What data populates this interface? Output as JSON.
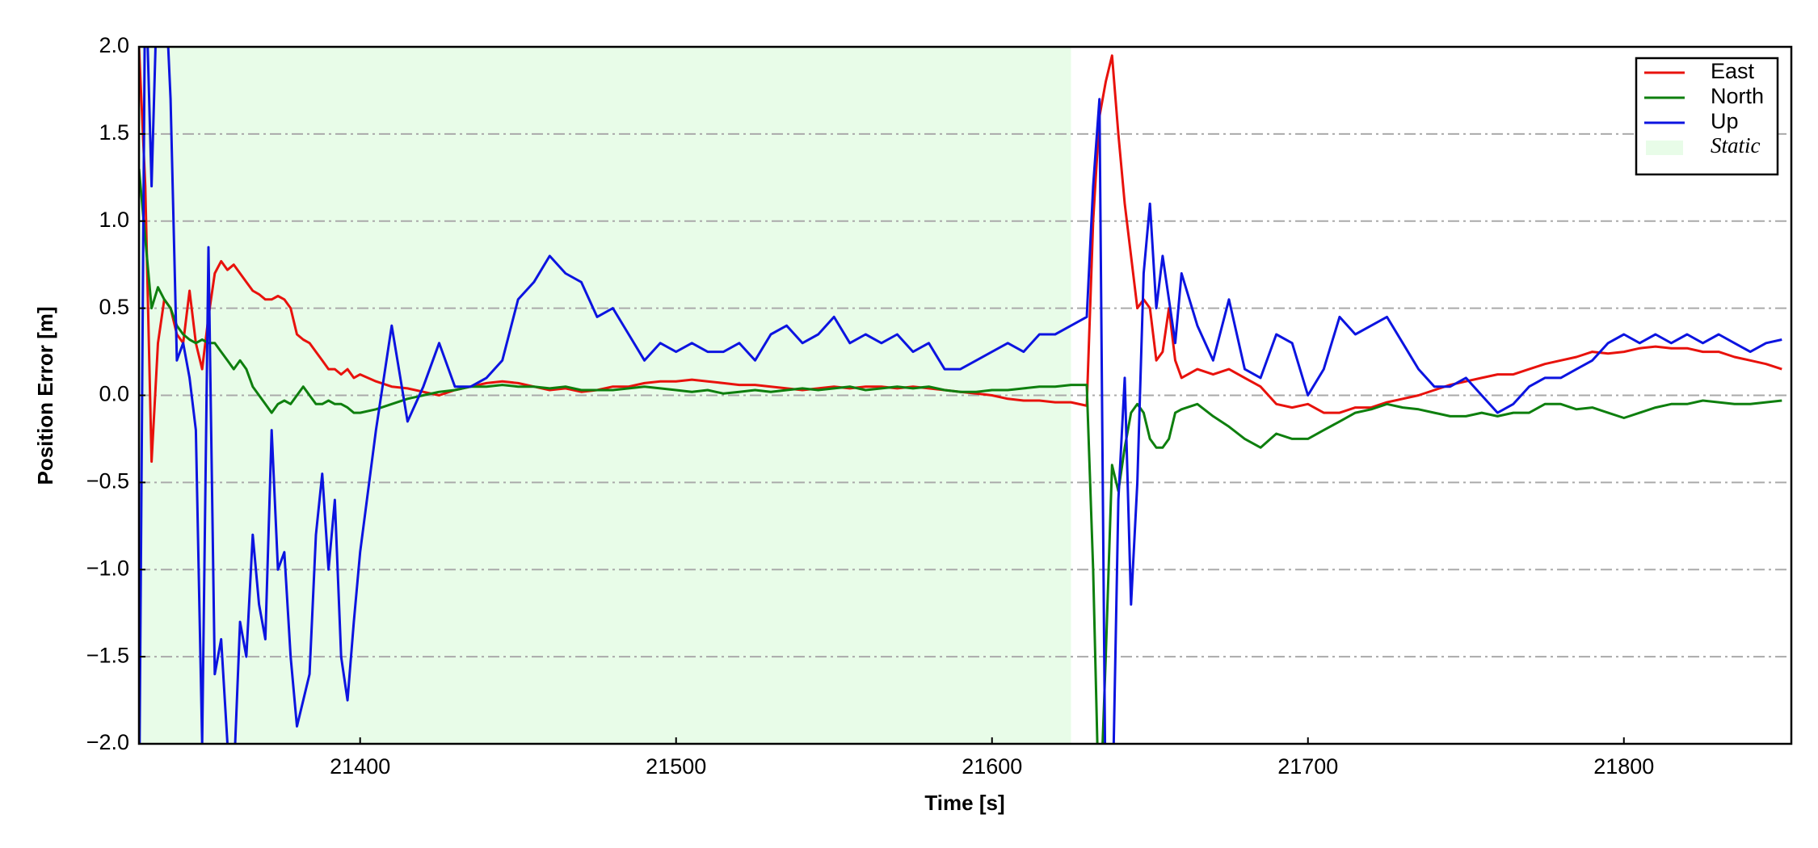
{
  "chart_data": {
    "type": "line",
    "xlabel": "Time [s]",
    "ylabel": "Position Error [m]",
    "xlim": [
      21330,
      21853
    ],
    "ylim": [
      -2.0,
      2.0
    ],
    "xticks": [
      21400,
      21500,
      21600,
      21700,
      21800
    ],
    "yticks": [
      {
        "value": -2.0,
        "label": "−2.0"
      },
      {
        "value": -1.5,
        "label": "−1.5"
      },
      {
        "value": -1.0,
        "label": "−1.0"
      },
      {
        "value": -0.5,
        "label": "−0.5"
      },
      {
        "value": 0.0,
        "label": "0.0"
      },
      {
        "value": 0.5,
        "label": "0.5"
      },
      {
        "value": 1.0,
        "label": "1.0"
      },
      {
        "value": 1.5,
        "label": "1.5"
      },
      {
        "value": 2.0,
        "label": "2.0"
      }
    ],
    "grid": true,
    "legend": "upper right",
    "shaded_region": {
      "name": "Static",
      "color": "#e8fce8",
      "x": [
        21330,
        21625
      ]
    },
    "x": [
      21330,
      21332,
      21334,
      21336,
      21338,
      21340,
      21342,
      21344,
      21346,
      21348,
      21350,
      21352,
      21354,
      21356,
      21358,
      21360,
      21362,
      21364,
      21366,
      21368,
      21370,
      21372,
      21374,
      21376,
      21378,
      21380,
      21382,
      21384,
      21386,
      21388,
      21390,
      21392,
      21394,
      21396,
      21398,
      21400,
      21405,
      21410,
      21415,
      21420,
      21425,
      21430,
      21435,
      21440,
      21445,
      21450,
      21455,
      21460,
      21465,
      21470,
      21475,
      21480,
      21485,
      21490,
      21495,
      21500,
      21505,
      21510,
      21515,
      21520,
      21525,
      21530,
      21535,
      21540,
      21545,
      21550,
      21555,
      21560,
      21565,
      21570,
      21575,
      21580,
      21585,
      21590,
      21595,
      21600,
      21605,
      21610,
      21615,
      21620,
      21625,
      21630,
      21632,
      21634,
      21636,
      21638,
      21640,
      21642,
      21644,
      21646,
      21648,
      21650,
      21652,
      21654,
      21656,
      21658,
      21660,
      21665,
      21670,
      21675,
      21680,
      21685,
      21690,
      21695,
      21700,
      21705,
      21710,
      21715,
      21720,
      21725,
      21730,
      21735,
      21740,
      21745,
      21750,
      21755,
      21760,
      21765,
      21770,
      21775,
      21780,
      21785,
      21790,
      21795,
      21800,
      21805,
      21810,
      21815,
      21820,
      21825,
      21830,
      21835,
      21840,
      21845,
      21850
    ],
    "series": [
      {
        "name": "East",
        "color": "#e8120c",
        "values": [
          2.0,
          1.2,
          -0.38,
          0.3,
          0.55,
          0.5,
          0.35,
          0.3,
          0.6,
          0.3,
          0.15,
          0.45,
          0.7,
          0.77,
          0.72,
          0.75,
          0.7,
          0.65,
          0.6,
          0.58,
          0.55,
          0.55,
          0.57,
          0.55,
          0.5,
          0.35,
          0.32,
          0.3,
          0.25,
          0.2,
          0.15,
          0.15,
          0.12,
          0.15,
          0.1,
          0.12,
          0.08,
          0.05,
          0.04,
          0.02,
          0.0,
          0.03,
          0.05,
          0.07,
          0.08,
          0.07,
          0.05,
          0.03,
          0.04,
          0.02,
          0.03,
          0.05,
          0.05,
          0.07,
          0.08,
          0.08,
          0.09,
          0.08,
          0.07,
          0.06,
          0.06,
          0.05,
          0.04,
          0.03,
          0.04,
          0.05,
          0.04,
          0.05,
          0.05,
          0.04,
          0.05,
          0.04,
          0.03,
          0.02,
          0.01,
          0.0,
          -0.02,
          -0.03,
          -0.03,
          -0.04,
          -0.04,
          -0.06,
          1.0,
          1.6,
          1.8,
          1.95,
          1.5,
          1.1,
          0.8,
          0.5,
          0.55,
          0.5,
          0.2,
          0.25,
          0.5,
          0.2,
          0.1,
          0.15,
          0.12,
          0.15,
          0.1,
          0.05,
          -0.05,
          -0.07,
          -0.05,
          -0.1,
          -0.1,
          -0.07,
          -0.07,
          -0.04,
          -0.02,
          0.0,
          0.03,
          0.06,
          0.08,
          0.1,
          0.12,
          0.12,
          0.15,
          0.18,
          0.2,
          0.22,
          0.25,
          0.24,
          0.25,
          0.27,
          0.28,
          0.27,
          0.27,
          0.25,
          0.25,
          0.22,
          0.2,
          0.18,
          0.15
        ]
      },
      {
        "name": "North",
        "color": "#0e7f0e",
        "values": [
          1.3,
          0.9,
          0.5,
          0.62,
          0.55,
          0.5,
          0.4,
          0.35,
          0.32,
          0.3,
          0.32,
          0.3,
          0.3,
          0.25,
          0.2,
          0.15,
          0.2,
          0.15,
          0.05,
          0.0,
          -0.05,
          -0.1,
          -0.05,
          -0.03,
          -0.05,
          0.0,
          0.05,
          0.0,
          -0.05,
          -0.05,
          -0.03,
          -0.05,
          -0.05,
          -0.07,
          -0.1,
          -0.1,
          -0.08,
          -0.05,
          -0.02,
          0.0,
          0.02,
          0.03,
          0.05,
          0.05,
          0.06,
          0.05,
          0.05,
          0.04,
          0.05,
          0.03,
          0.03,
          0.03,
          0.04,
          0.05,
          0.04,
          0.03,
          0.02,
          0.03,
          0.01,
          0.02,
          0.03,
          0.02,
          0.03,
          0.04,
          0.03,
          0.04,
          0.05,
          0.03,
          0.04,
          0.05,
          0.04,
          0.05,
          0.03,
          0.02,
          0.02,
          0.03,
          0.03,
          0.04,
          0.05,
          0.05,
          0.06,
          0.06,
          -1.0,
          -2.5,
          -1.5,
          -0.4,
          -0.55,
          -0.3,
          -0.1,
          -0.05,
          -0.1,
          -0.25,
          -0.3,
          -0.3,
          -0.25,
          -0.1,
          -0.08,
          -0.05,
          -0.12,
          -0.18,
          -0.25,
          -0.3,
          -0.22,
          -0.25,
          -0.25,
          -0.2,
          -0.15,
          -0.1,
          -0.08,
          -0.05,
          -0.07,
          -0.08,
          -0.1,
          -0.12,
          -0.12,
          -0.1,
          -0.12,
          -0.1,
          -0.1,
          -0.05,
          -0.05,
          -0.08,
          -0.07,
          -0.1,
          -0.13,
          -0.1,
          -0.07,
          -0.05,
          -0.05,
          -0.03,
          -0.04,
          -0.05,
          -0.05,
          -0.04,
          -0.03
        ]
      },
      {
        "name": "Up",
        "color": "#0c14e0",
        "values": [
          -2.5,
          2.5,
          1.2,
          2.5,
          2.5,
          1.7,
          0.2,
          0.3,
          0.1,
          -0.2,
          -2.0,
          0.85,
          -1.6,
          -1.4,
          -2.0,
          -2.2,
          -1.3,
          -1.5,
          -0.8,
          -1.2,
          -1.4,
          -0.2,
          -1.0,
          -0.9,
          -1.5,
          -1.9,
          -1.75,
          -1.6,
          -0.8,
          -0.45,
          -1.0,
          -0.6,
          -1.5,
          -1.75,
          -1.3,
          -0.9,
          -0.2,
          0.4,
          -0.15,
          0.05,
          0.3,
          0.05,
          0.05,
          0.1,
          0.2,
          0.55,
          0.65,
          0.8,
          0.7,
          0.65,
          0.45,
          0.5,
          0.35,
          0.2,
          0.3,
          0.25,
          0.3,
          0.25,
          0.25,
          0.3,
          0.2,
          0.35,
          0.4,
          0.3,
          0.35,
          0.45,
          0.3,
          0.35,
          0.3,
          0.35,
          0.25,
          0.3,
          0.15,
          0.15,
          0.2,
          0.25,
          0.3,
          0.25,
          0.35,
          0.35,
          0.4,
          0.45,
          1.2,
          1.7,
          -2.5,
          -2.5,
          -0.6,
          0.1,
          -1.2,
          -0.5,
          0.7,
          1.1,
          0.5,
          0.8,
          0.55,
          0.3,
          0.7,
          0.4,
          0.2,
          0.55,
          0.15,
          0.1,
          0.35,
          0.3,
          0.0,
          0.15,
          0.45,
          0.35,
          0.4,
          0.45,
          0.3,
          0.15,
          0.05,
          0.05,
          0.1,
          0.0,
          -0.1,
          -0.05,
          0.05,
          0.1,
          0.1,
          0.15,
          0.2,
          0.3,
          0.35,
          0.3,
          0.35,
          0.3,
          0.35,
          0.3,
          0.35,
          0.3,
          0.25,
          0.3,
          0.32
        ]
      }
    ]
  }
}
